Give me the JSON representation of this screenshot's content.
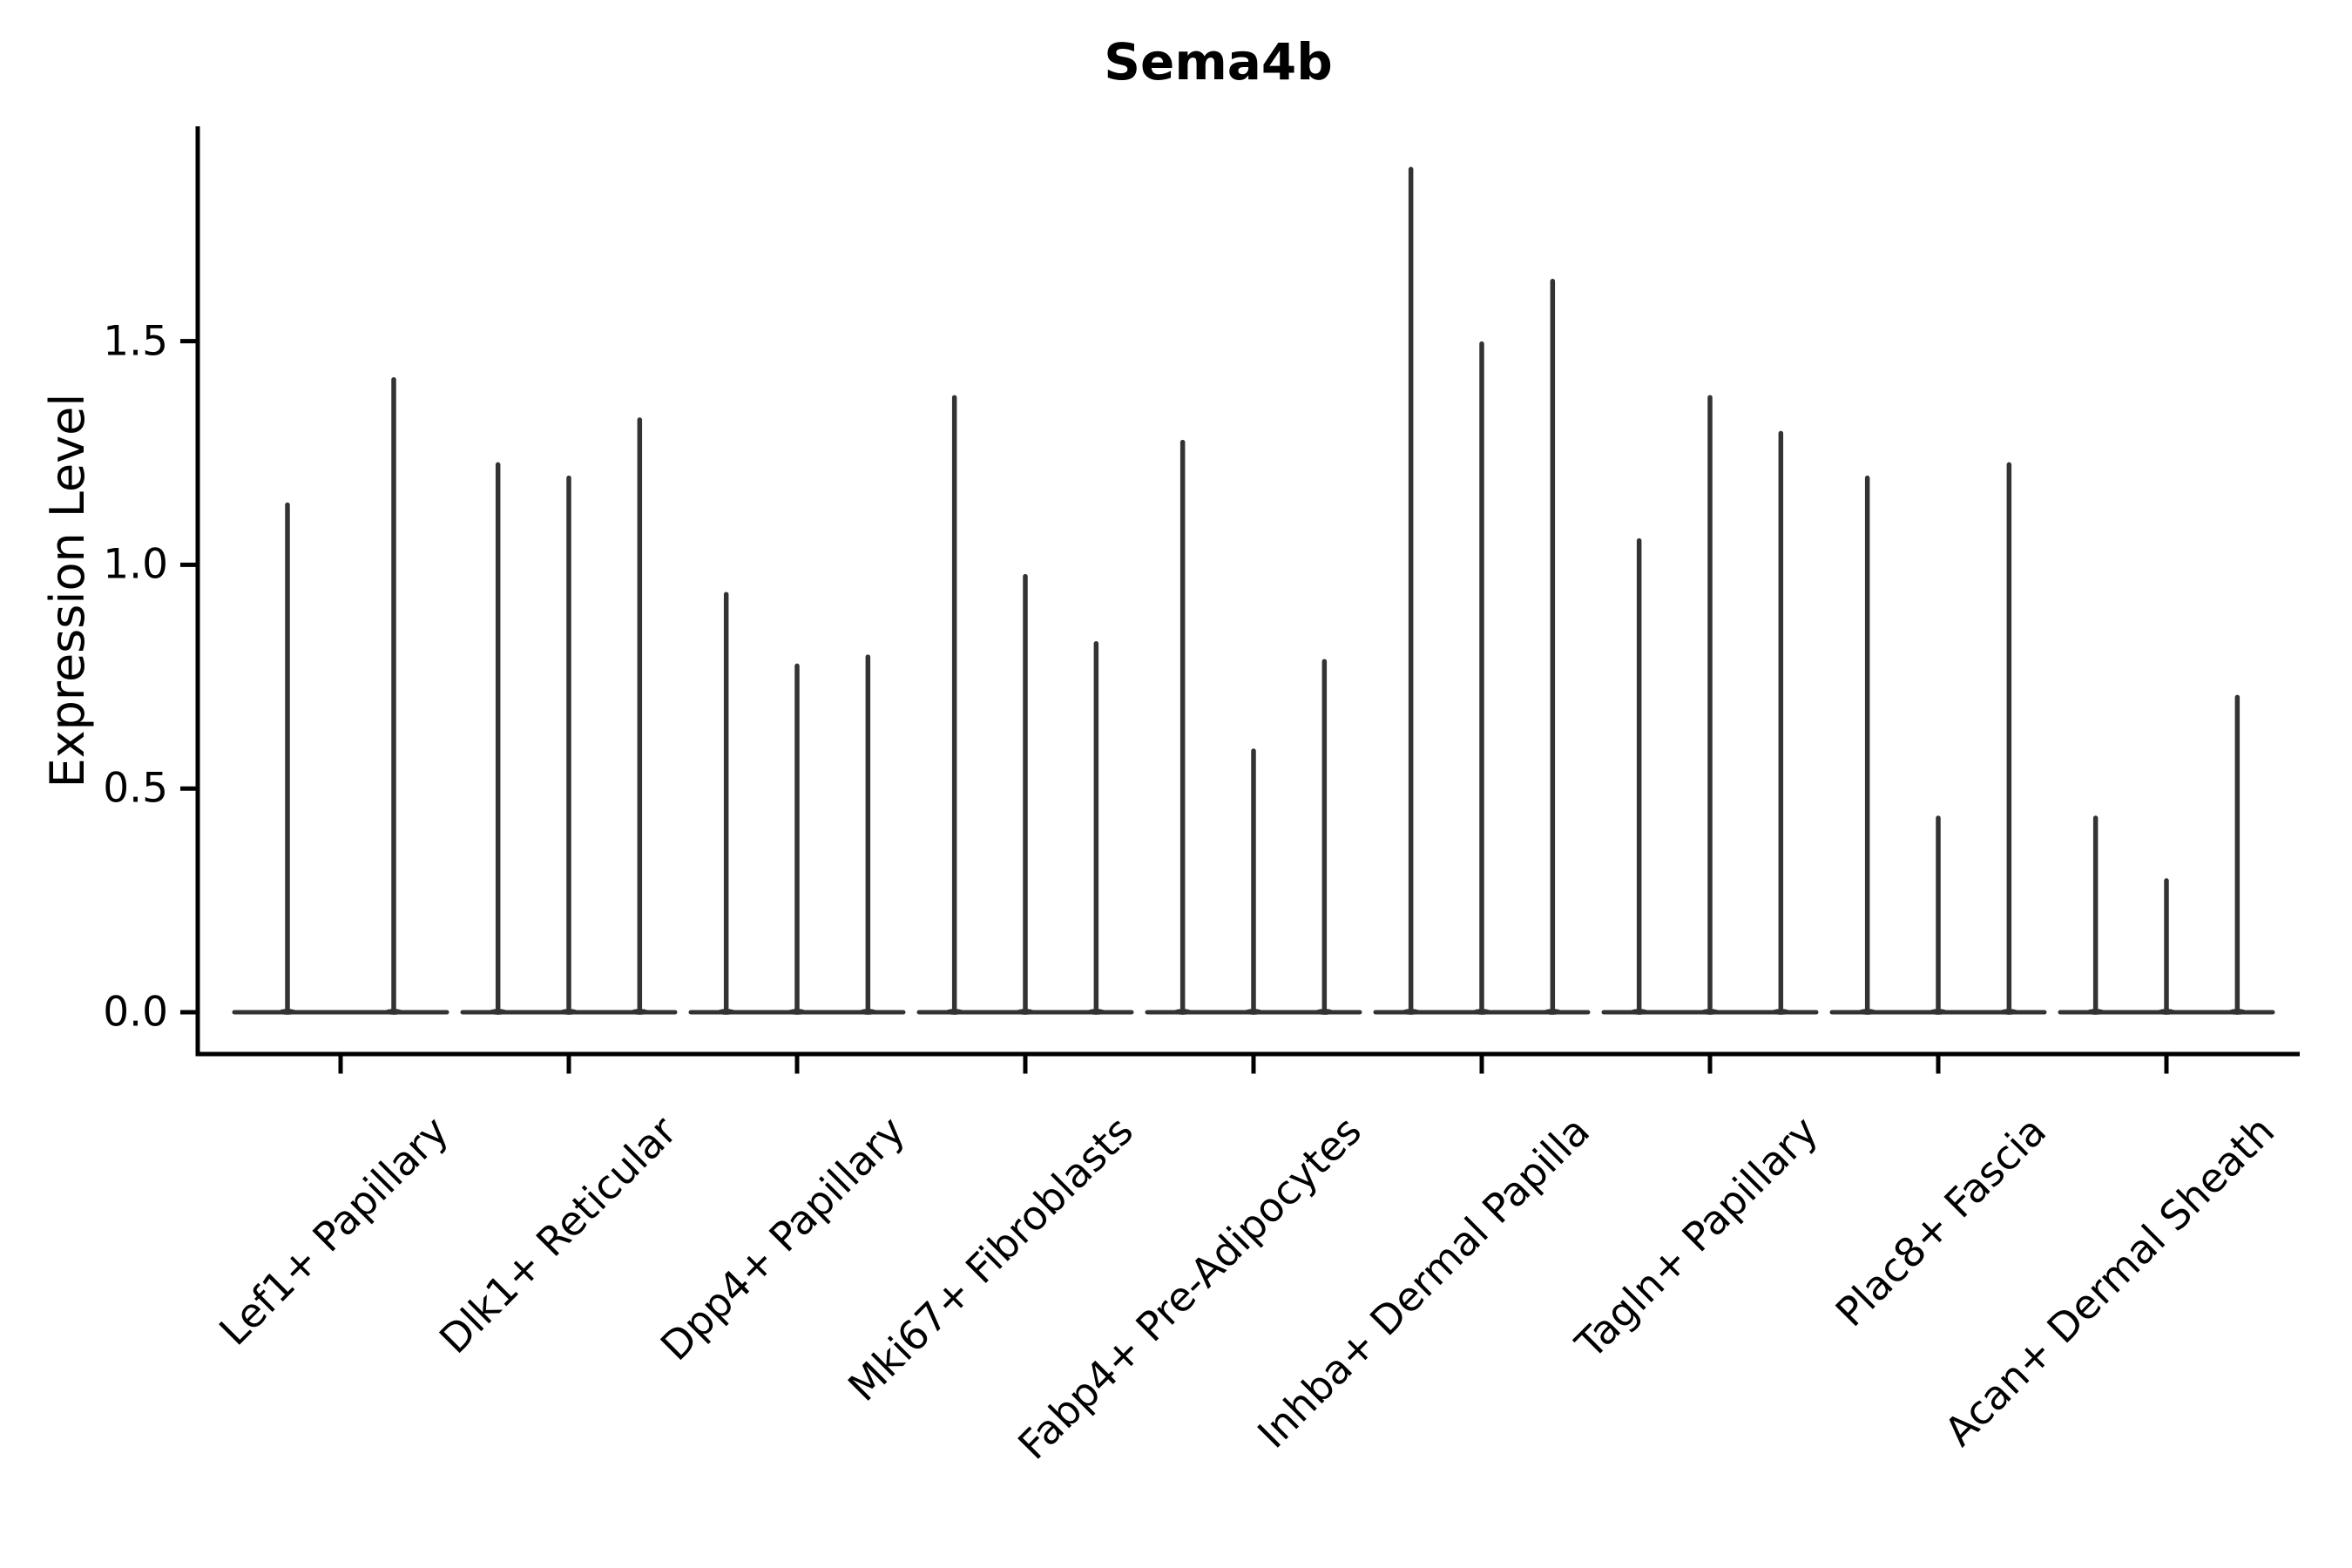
{
  "chart_data": {
    "type": "violin",
    "title": "Sema4b",
    "xlabel": "",
    "ylabel": "Expression Level",
    "ylim": [
      -0.09,
      1.98
    ],
    "yticks": [
      0.0,
      0.5,
      1.0,
      1.5
    ],
    "ytick_labels": [
      "0.0",
      "0.5",
      "1.0",
      "1.5"
    ],
    "grid": false,
    "legend": "none",
    "description": "Single-gene violin plot; each category shows 2-3 very thin violins whose density mass sits at expression 0 (flat baseline) with a narrow spike rising to the listed maximum expression value.",
    "baseline_value": 0.0,
    "categories": [
      "Lef1+ Papillary",
      "Dlk1+ Reticular",
      "Dpp4+ Papillary",
      "Mki67+ Fibroblasts",
      "Fabp4+ Pre-Adipocytes",
      "Inhba+ Dermal Papilla",
      "Tagln+ Papillary",
      "Plac8+ Fascia",
      "Acan+ Dermal Sheath"
    ],
    "groups": [
      {
        "category": "Lef1+ Papillary",
        "violin_maxima": [
          1.14,
          1.42
        ]
      },
      {
        "category": "Dlk1+ Reticular",
        "violin_maxima": [
          1.23,
          1.2,
          1.33
        ]
      },
      {
        "category": "Dpp4+ Papillary",
        "violin_maxima": [
          0.94,
          0.78,
          0.8
        ]
      },
      {
        "category": "Mki67+ Fibroblasts",
        "violin_maxima": [
          1.38,
          0.98,
          0.83
        ]
      },
      {
        "category": "Fabp4+ Pre-Adipocytes",
        "violin_maxima": [
          1.28,
          0.59,
          0.79
        ]
      },
      {
        "category": "Inhba+ Dermal Papilla",
        "violin_maxima": [
          1.89,
          1.5,
          1.64
        ]
      },
      {
        "category": "Tagln+ Papillary",
        "violin_maxima": [
          1.06,
          1.38,
          1.3
        ]
      },
      {
        "category": "Plac8+ Fascia",
        "violin_maxima": [
          1.2,
          0.44,
          1.23
        ]
      },
      {
        "category": "Acan+ Dermal Sheath",
        "violin_maxima": [
          0.44,
          0.3,
          0.71
        ]
      }
    ],
    "colors": {
      "violin": "#333333",
      "axis": "#000000",
      "text": "#000000",
      "background": "#ffffff"
    }
  }
}
